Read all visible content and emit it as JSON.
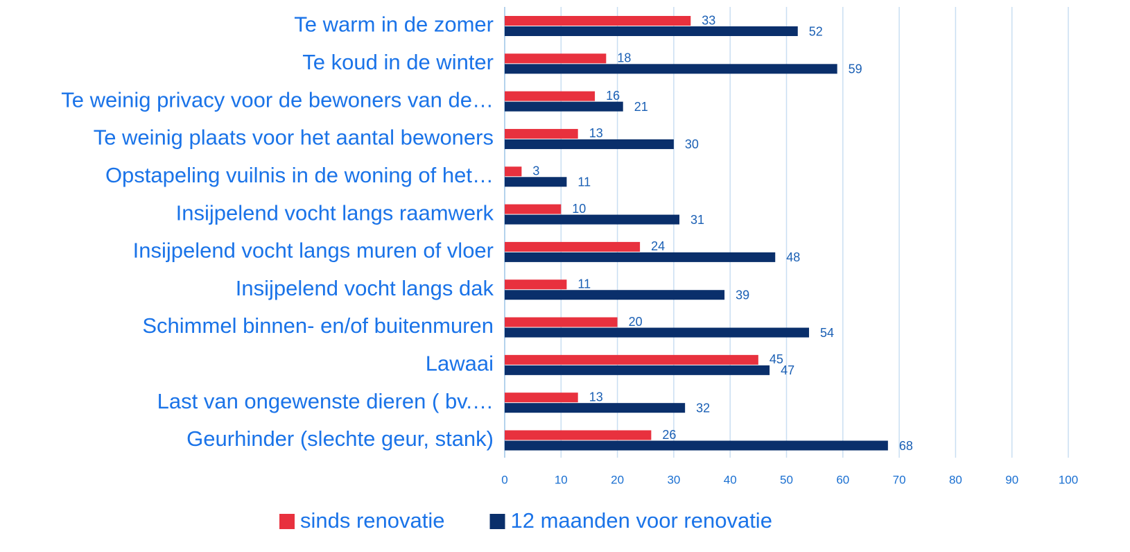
{
  "chart_data": {
    "type": "hbar",
    "categories": [
      "Te warm in de zomer",
      "Te koud in de winter",
      "Te weinig privacy voor de bewoners van de…",
      "Te weinig plaats voor het aantal bewoners",
      "Opstapeling vuilnis in de woning of het…",
      "Insijpelend vocht langs raamwerk",
      "Insijpelend vocht langs muren of vloer",
      "Insijpelend vocht langs dak",
      "Schimmel binnen- en/of buitenmuren",
      "Lawaai",
      "Last van ongewenste dieren ( bv.…",
      "Geurhinder (slechte geur, stank)"
    ],
    "series": [
      {
        "name": "sinds renovatie",
        "color": "#e8313e",
        "values": [
          33,
          18,
          16,
          13,
          3,
          10,
          24,
          11,
          20,
          45,
          13,
          26
        ]
      },
      {
        "name": "12 maanden voor renovatie",
        "color": "#0a2f6b",
        "values": [
          52,
          59,
          21,
          30,
          11,
          31,
          48,
          39,
          54,
          47,
          32,
          68
        ]
      }
    ],
    "xlim": [
      0,
      100
    ],
    "xticks": [
      0,
      10,
      20,
      30,
      40,
      50,
      60,
      70,
      80,
      90,
      100
    ],
    "grid": true,
    "legend": "bottom"
  }
}
